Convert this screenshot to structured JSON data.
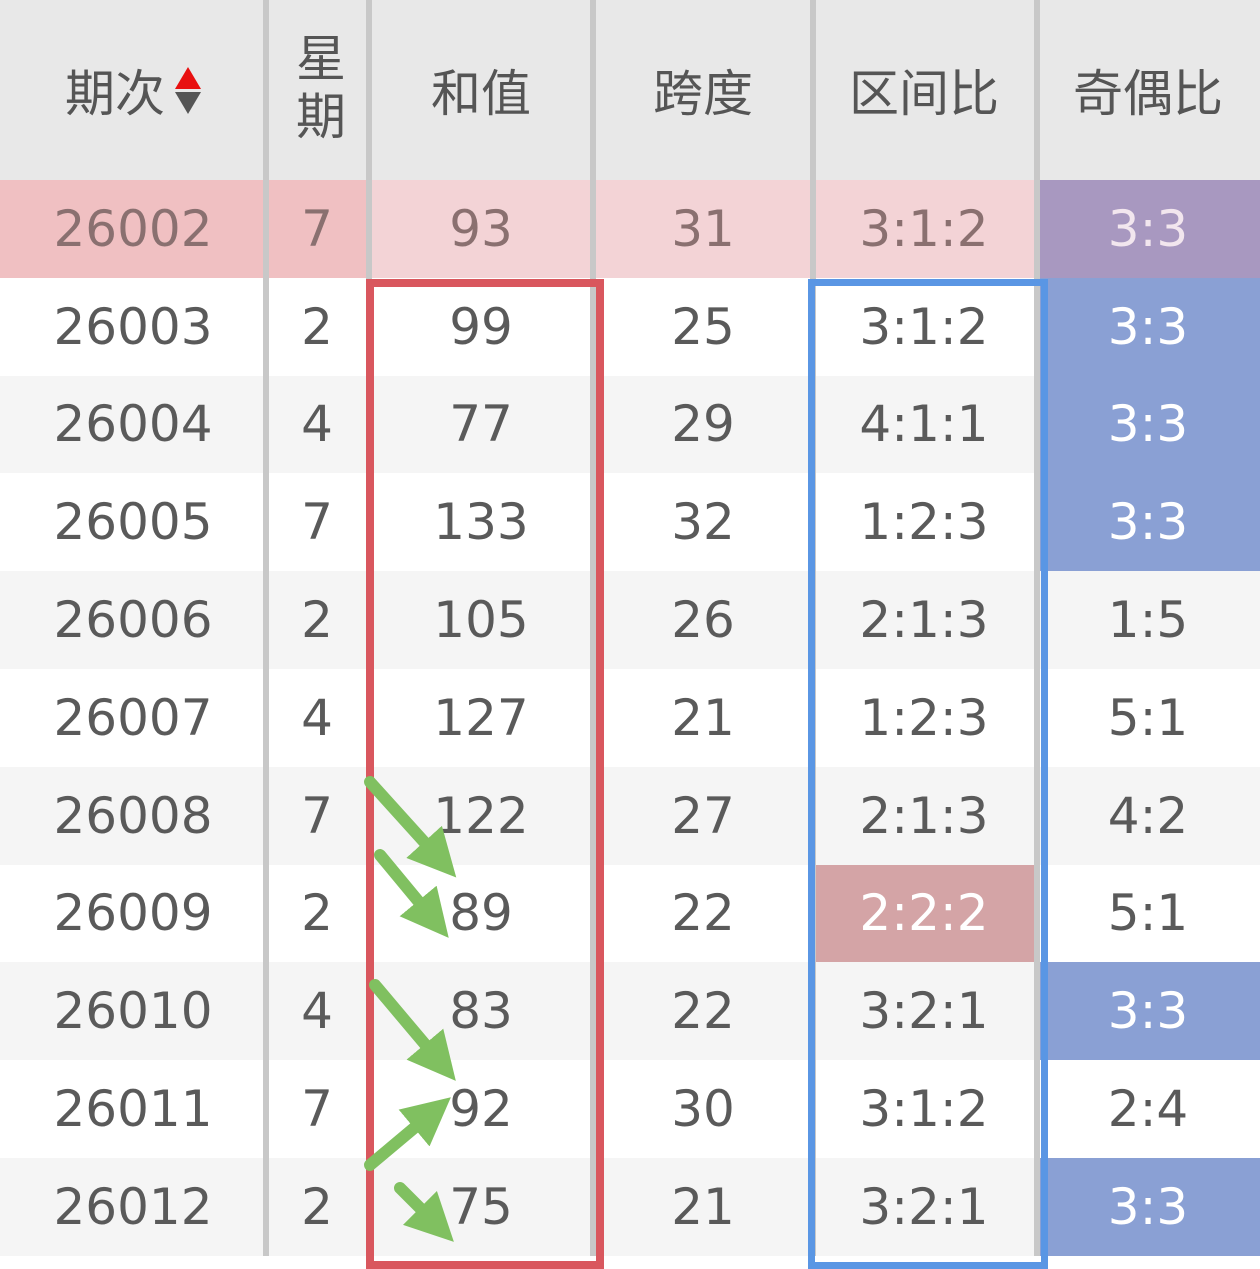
{
  "headers": {
    "issue": "期次",
    "weekday": "星期",
    "sum": "和值",
    "span": "跨度",
    "zone_ratio": "区间比",
    "odd_even_ratio": "奇偶比"
  },
  "sort_icon": "sort-up-down-icon",
  "colors": {
    "highlight_row": "#f3d3d6",
    "odd_even_highlight": "#8aa0d4",
    "zone_highlight": "#d4a4a6",
    "sum_box": "#d9575e",
    "zone_box": "#5a96e4",
    "arrows": "#80c060"
  },
  "rows": [
    {
      "issue": "26002",
      "weekday": "7",
      "sum": "93",
      "span": "31",
      "zone": "3:1:2",
      "oe": "3:3"
    },
    {
      "issue": "26003",
      "weekday": "2",
      "sum": "99",
      "span": "25",
      "zone": "3:1:2",
      "oe": "3:3"
    },
    {
      "issue": "26004",
      "weekday": "4",
      "sum": "77",
      "span": "29",
      "zone": "4:1:1",
      "oe": "3:3"
    },
    {
      "issue": "26005",
      "weekday": "7",
      "sum": "133",
      "span": "32",
      "zone": "1:2:3",
      "oe": "3:3"
    },
    {
      "issue": "26006",
      "weekday": "2",
      "sum": "105",
      "span": "26",
      "zone": "2:1:3",
      "oe": "1:5"
    },
    {
      "issue": "26007",
      "weekday": "4",
      "sum": "127",
      "span": "21",
      "zone": "1:2:3",
      "oe": "5:1"
    },
    {
      "issue": "26008",
      "weekday": "7",
      "sum": "122",
      "span": "27",
      "zone": "2:1:3",
      "oe": "4:2"
    },
    {
      "issue": "26009",
      "weekday": "2",
      "sum": "89",
      "span": "22",
      "zone": "2:2:2",
      "oe": "5:1"
    },
    {
      "issue": "26010",
      "weekday": "4",
      "sum": "83",
      "span": "22",
      "zone": "3:2:1",
      "oe": "3:3"
    },
    {
      "issue": "26011",
      "weekday": "7",
      "sum": "92",
      "span": "30",
      "zone": "3:1:2",
      "oe": "2:4"
    },
    {
      "issue": "26012",
      "weekday": "2",
      "sum": "75",
      "span": "21",
      "zone": "3:2:1",
      "oe": "3:3"
    }
  ]
}
